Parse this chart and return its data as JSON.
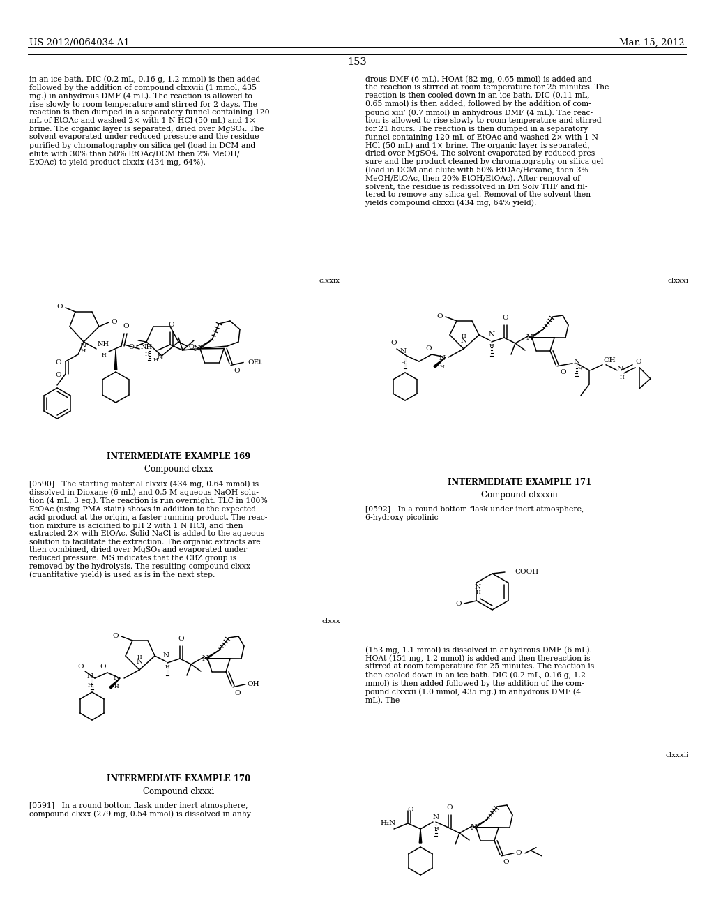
{
  "header_left": "US 2012/0064034 A1",
  "header_right": "Mar. 15, 2012",
  "page_number": "153",
  "bg_color": "#ffffff",
  "fg_color": "#000000",
  "left_top_text": "in an ice bath. DIC (0.2 mL, 0.16 g, 1.2 mmol) is then added\nfollowed by the addition of compound clxxviii (1 mmol, 435\nmg.) in anhydrous DMF (4 mL). The reaction is allowed to\nrise slowly to room temperature and stirred for 2 days. The\nreaction is then dumped in a separatory funnel containing 120\nmL of EtOAc and washed 2× with 1 N HCl (50 mL) and 1×\nbrine. The organic layer is separated, dried over MgSO₄. The\nsolvent evaporated under reduced pressure and the residue\npurified by chromatography on silica gel (load in DCM and\nelute with 30% than 50% EtOAc/DCM then 2% MeOH/\nEtOAc) to yield product clxxix (434 mg, 64%).",
  "right_top_text": "drous DMF (6 mL). HOAt (82 mg, 0.65 mmol) is added and\nthe reaction is stirred at room temperature for 25 minutes. The\nreaction is then cooled down in an ice bath. DIC (0.11 mL,\n0.65 mmol) is then added, followed by the addition of com-\npound xiii’ (0.7 mmol) in anhydrous DMF (4 mL). The reac-\ntion is allowed to rise slowly to room temperature and stirred\nfor 21 hours. The reaction is then dumped in a separatory\nfunnel containing 120 mL of EtOAc and washed 2× with 1 N\nHCl (50 mL) and 1× brine. The organic layer is separated,\ndried over MgSO4. The solvent evaporated by reduced pres-\nsure and the product cleaned by chromatography on silica gel\n(load in DCM and elute with 50% EtOAc/Hexane, then 3%\nMeOH/EtOAc, then 20% EtOH/EtOAc). After removal of\nsolvent, the residue is redissolved in Dri Solv THF and fil-\ntered to remove any silica gel. Removal of the solvent then\nyields compound clxxxi (434 mg, 64% yield).",
  "p590": "[0590]   The starting material clxxix (434 mg, 0.64 mmol) is\ndissolved in Dioxane (6 mL) and 0.5 M aqueous NaOH solu-\ntion (4 mL, 3 eq.). The reaction is run overnight. TLC in 100%\nEtOAc (using PMA stain) shows in addition to the expected\nacid product at the origin, a faster running product. The reac-\ntion mixture is acidified to pH 2 with 1 N HCl, and then\nextracted 2× with EtOAc. Solid NaCl is added to the aqueous\nsolution to facilitate the extraction. The organic extracts are\nthen combined, dried over MgSO₄ and evaporated under\nreduced pressure. MS indicates that the CBZ group is\nremoved by the hydrolysis. The resulting compound clxxx\n(quantitative yield) is used as is in the next step.",
  "p591": "[0591]   In a round bottom flask under inert atmosphere,\ncompound clxxx (279 mg, 0.54 mmol) is dissolved in anhy-",
  "p592a": "[0592]   In a round bottom flask under inert atmosphere,\n6-hydroxy picolinic",
  "p592b": "(153 mg, 1.1 mmol) is dissolved in anhydrous DMF (6 mL).\nHOAt (151 mg, 1.2 mmol) is added and then thereaction is\nstirred at room temperature for 25 minutes. The reaction is\nthen cooled down in an ice bath. DIC (0.2 mL, 0.16 g, 1.2\nmmol) is then added followed by the addition of the com-\npound clxxxii (1.0 mmol, 435 mg.) in anhydrous DMF (4\nmL). The",
  "example169_title": "INTERMEDIATE EXAMPLE 169",
  "example169_sub": "Compound clxxx",
  "example170_title": "INTERMEDIATE EXAMPLE 170",
  "example170_sub": "Compound clxxxi",
  "example171_title": "INTERMEDIATE EXAMPLE 171",
  "example171_sub": "Compound clxxxiii"
}
